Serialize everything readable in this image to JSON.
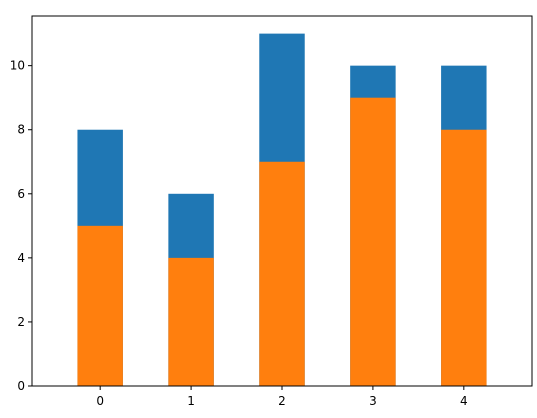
{
  "chart_data": {
    "type": "bar",
    "stacked": false,
    "overlay": true,
    "categories": [
      "0",
      "1",
      "2",
      "3",
      "4"
    ],
    "series": [
      {
        "values": [
          8,
          6,
          11,
          10,
          10
        ],
        "color": "#1f77b4"
      },
      {
        "values": [
          5,
          4,
          7,
          9,
          8
        ],
        "color": "#ff7f0e"
      }
    ],
    "ylim": [
      0,
      11.55
    ],
    "y_ticks": [
      0,
      2,
      4,
      6,
      8,
      10
    ],
    "x_ticks": [
      "0",
      "1",
      "2",
      "3",
      "4"
    ],
    "grid": false,
    "legend": "none",
    "title": "",
    "xlabel": "",
    "ylabel": ""
  }
}
